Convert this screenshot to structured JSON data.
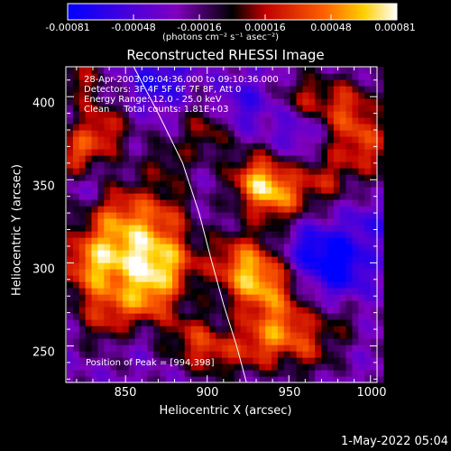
{
  "colorbar": {
    "ticks": [
      "-0.00081",
      "-0.00048",
      "-0.00016",
      "0.00016",
      "0.00048",
      "0.00081"
    ],
    "units_text": "(photons cm⁻² s⁻¹ asec⁻²)"
  },
  "header": {
    "line1": "28-Apr-2003 09:04:36.000 to 09:10:36.000",
    "line2": "Detectors: 3F 4F 5F 6F 7F 8F, Att 0",
    "line3": "Energy Range: 12.0 - 25.0 keV",
    "line4": "Clean     Total counts: 1.81E+03"
  },
  "peak_text": "Position of Peak = [994,398]",
  "timestamp": "1-May-2022 05:04",
  "chart_data": {
    "type": "heatmap",
    "title": "Reconstructed RHESSI Image",
    "xlabel": "Heliocentric X (arcsec)",
    "ylabel": "Heliocentric Y (arcsec)",
    "xlim": [
      814,
      1004
    ],
    "ylim": [
      228,
      418
    ],
    "x_ticks": [
      850,
      900,
      950,
      1000
    ],
    "y_ticks": [
      250,
      300,
      350,
      400
    ],
    "value_range": [
      -0.00081,
      0.00081
    ],
    "colormap": [
      "#0000ff",
      "#8000c0",
      "#000000",
      "#c00000",
      "#ff6000",
      "#ffd000",
      "#ffffff"
    ],
    "peak": [
      994,
      398
    ],
    "limb_curve": [
      [
        855,
        418
      ],
      [
        870,
        390
      ],
      [
        885,
        360
      ],
      [
        895,
        330
      ],
      [
        903,
        300
      ],
      [
        910,
        275
      ],
      [
        918,
        250
      ],
      [
        924,
        228
      ]
    ],
    "blobs": [
      [
        822,
        410,
        0.0004,
        10
      ],
      [
        835,
        380,
        0.00055,
        12
      ],
      [
        820,
        365,
        0.0005,
        9
      ],
      [
        845,
        330,
        0.0006,
        15
      ],
      [
        830,
        300,
        0.00075,
        14
      ],
      [
        860,
        305,
        0.0007,
        14
      ],
      [
        880,
        300,
        0.0005,
        12
      ],
      [
        875,
        330,
        0.0004,
        12
      ],
      [
        865,
        280,
        0.0006,
        12
      ],
      [
        840,
        270,
        0.0005,
        14
      ],
      [
        890,
        255,
        0.00045,
        12
      ],
      [
        905,
        245,
        0.00035,
        10
      ],
      [
        920,
        300,
        0.0006,
        14
      ],
      [
        935,
        285,
        0.00065,
        14
      ],
      [
        950,
        260,
        0.00055,
        12
      ],
      [
        930,
        250,
        0.0005,
        12
      ],
      [
        965,
        245,
        0.0003,
        10
      ],
      [
        980,
        265,
        0.00025,
        10
      ],
      [
        930,
        350,
        0.0007,
        12
      ],
      [
        945,
        340,
        0.0006,
        12
      ],
      [
        970,
        350,
        0.0004,
        10
      ],
      [
        995,
        370,
        0.00055,
        14
      ],
      [
        985,
        395,
        0.0005,
        12
      ],
      [
        960,
        400,
        0.0004,
        10
      ],
      [
        900,
        380,
        0.0004,
        12
      ],
      [
        875,
        360,
        0.0003,
        10
      ],
      [
        870,
        410,
        -0.0004,
        12
      ],
      [
        920,
        395,
        -0.0003,
        12
      ],
      [
        980,
        300,
        -0.0006,
        14
      ],
      [
        960,
        310,
        -0.0003,
        10
      ],
      [
        830,
        345,
        -0.0002,
        10
      ],
      [
        955,
        380,
        -0.00025,
        10
      ],
      [
        1000,
        325,
        -0.00025,
        8
      ],
      [
        855,
        255,
        -0.00015,
        8
      ]
    ]
  }
}
